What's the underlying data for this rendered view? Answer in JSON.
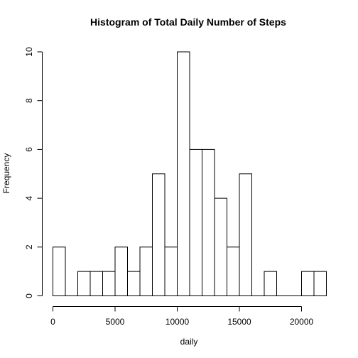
{
  "chart_data": {
    "type": "bar",
    "title": "Histogram of Total Daily Number of Steps",
    "xlabel": "daily",
    "ylabel": "Frequency",
    "bin_width": 1000,
    "bins": [
      {
        "start": 0,
        "end": 1000,
        "count": 2
      },
      {
        "start": 1000,
        "end": 2000,
        "count": 0
      },
      {
        "start": 2000,
        "end": 3000,
        "count": 1
      },
      {
        "start": 3000,
        "end": 4000,
        "count": 1
      },
      {
        "start": 4000,
        "end": 5000,
        "count": 1
      },
      {
        "start": 5000,
        "end": 6000,
        "count": 2
      },
      {
        "start": 6000,
        "end": 7000,
        "count": 1
      },
      {
        "start": 7000,
        "end": 8000,
        "count": 2
      },
      {
        "start": 8000,
        "end": 9000,
        "count": 5
      },
      {
        "start": 9000,
        "end": 10000,
        "count": 2
      },
      {
        "start": 10000,
        "end": 11000,
        "count": 10
      },
      {
        "start": 11000,
        "end": 12000,
        "count": 6
      },
      {
        "start": 12000,
        "end": 13000,
        "count": 6
      },
      {
        "start": 13000,
        "end": 14000,
        "count": 4
      },
      {
        "start": 14000,
        "end": 15000,
        "count": 2
      },
      {
        "start": 15000,
        "end": 16000,
        "count": 5
      },
      {
        "start": 16000,
        "end": 17000,
        "count": 0
      },
      {
        "start": 17000,
        "end": 18000,
        "count": 1
      },
      {
        "start": 18000,
        "end": 19000,
        "count": 0
      },
      {
        "start": 19000,
        "end": 20000,
        "count": 0
      },
      {
        "start": 20000,
        "end": 21000,
        "count": 1
      },
      {
        "start": 21000,
        "end": 22000,
        "count": 1
      }
    ],
    "xlim": [
      0,
      22000
    ],
    "ylim": [
      0,
      10
    ],
    "x_ticks": [
      0,
      5000,
      10000,
      15000,
      20000
    ],
    "y_ticks": [
      0,
      2,
      4,
      6,
      8,
      10
    ],
    "grid": false,
    "legend": "none"
  }
}
